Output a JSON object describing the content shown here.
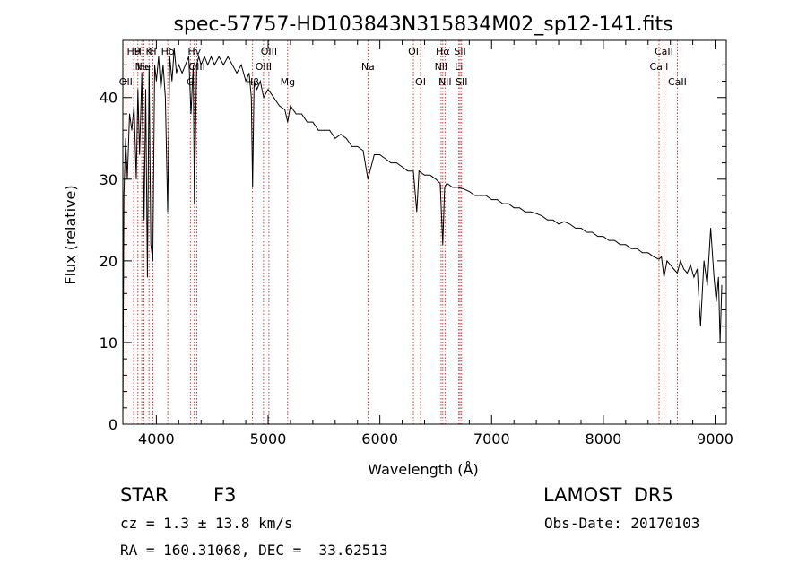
{
  "chart_data": {
    "type": "line",
    "title": "spec-57757-HD103843N315834M02_sp12-141.fits",
    "xlabel": "Wavelength (Å)",
    "ylabel": "Flux (relative)",
    "xlim": [
      3700,
      9100
    ],
    "ylim": [
      0,
      47
    ],
    "x_ticks": [
      4000,
      5000,
      6000,
      7000,
      8000,
      9000
    ],
    "y_ticks": [
      0,
      10,
      20,
      30,
      40
    ],
    "grid": false,
    "line_color": "#000000",
    "marker_color": "#cc0000",
    "series": [
      {
        "x": [
          3700,
          3710,
          3725,
          3740,
          3760,
          3780,
          3800,
          3820,
          3835,
          3850,
          3870,
          3890,
          3905,
          3920,
          3935,
          3950,
          3968,
          3985,
          4000,
          4020,
          4040,
          4060,
          4080,
          4101,
          4120,
          4140,
          4160,
          4180,
          4200,
          4230,
          4260,
          4290,
          4310,
          4330,
          4340,
          4360,
          4380,
          4400,
          4430,
          4460,
          4490,
          4520,
          4560,
          4600,
          4640,
          4680,
          4720,
          4760,
          4800,
          4830,
          4850,
          4861,
          4875,
          4900,
          4930,
          4960,
          5000,
          5050,
          5100,
          5150,
          5175,
          5200,
          5250,
          5300,
          5350,
          5400,
          5450,
          5500,
          5550,
          5600,
          5650,
          5700,
          5750,
          5800,
          5850,
          5893,
          5950,
          6000,
          6050,
          6100,
          6150,
          6200,
          6250,
          6300,
          6330,
          6350,
          6400,
          6450,
          6500,
          6540,
          6563,
          6580,
          6600,
          6650,
          6700,
          6750,
          6800,
          6850,
          6900,
          6950,
          7000,
          7050,
          7100,
          7150,
          7200,
          7250,
          7300,
          7350,
          7400,
          7450,
          7500,
          7550,
          7600,
          7650,
          7700,
          7750,
          7800,
          7850,
          7900,
          7950,
          8000,
          8050,
          8100,
          8150,
          8200,
          8250,
          8300,
          8350,
          8400,
          8450,
          8498,
          8520,
          8542,
          8570,
          8600,
          8630,
          8662,
          8690,
          8720,
          8750,
          8780,
          8810,
          8840,
          8870,
          8900,
          8930,
          8960,
          8990,
          9010,
          9030,
          9045,
          9060
        ],
        "y": [
          0.5,
          28,
          35,
          30,
          38,
          36,
          39,
          30,
          41,
          33,
          43,
          25,
          41,
          18,
          44,
          22,
          20,
          44,
          42,
          45,
          41,
          44,
          40,
          26,
          45,
          42,
          46,
          43,
          44,
          43,
          44,
          45,
          38,
          44,
          27,
          44,
          45,
          44,
          45,
          44,
          45,
          44,
          45,
          44,
          45,
          44,
          43,
          44,
          42,
          43,
          40,
          29,
          42,
          41,
          42,
          40,
          41,
          40,
          39,
          38.5,
          37,
          39,
          38,
          38,
          37,
          37,
          36,
          36,
          36,
          35,
          35.5,
          35,
          34,
          34,
          33.5,
          30,
          33,
          33,
          32.5,
          32,
          32,
          31.5,
          31,
          31,
          26,
          31,
          30.5,
          30.5,
          30,
          29.5,
          22,
          29,
          29.5,
          29,
          29,
          28.8,
          28.5,
          28,
          28,
          28,
          27.5,
          27.5,
          27,
          27,
          26.5,
          26.5,
          26,
          26,
          25.8,
          25.5,
          25,
          25,
          24.5,
          24.8,
          24.5,
          24,
          24,
          23.5,
          23.5,
          23,
          23,
          22.5,
          22.5,
          22,
          22,
          21.5,
          21.5,
          21,
          21,
          20.5,
          20.2,
          20.5,
          18,
          20,
          19.5,
          19,
          18.5,
          20,
          19,
          18.5,
          19.5,
          18,
          19,
          12,
          20,
          17,
          24,
          18,
          15,
          18,
          10,
          17
        ]
      }
    ],
    "lines": [
      {
        "x": 3727,
        "labels": [
          "OII"
        ],
        "row": 3
      },
      {
        "x": 3797,
        "labels": [
          "H9"
        ],
        "row": 1
      },
      {
        "x": 3835,
        "labels": [
          "H"
        ],
        "row": 1
      },
      {
        "x": 3869,
        "labels": [
          "Ne"
        ],
        "row": 2
      },
      {
        "x": 3889,
        "labels": [
          "He"
        ],
        "row": 2
      },
      {
        "x": 3934,
        "labels": [
          "K"
        ],
        "row": 1
      },
      {
        "x": 3969,
        "labels": [
          "H"
        ],
        "row": 1
      },
      {
        "x": 4102,
        "labels": [
          "Hδ"
        ],
        "row": 1
      },
      {
        "x": 4304,
        "labels": [
          "G"
        ],
        "row": 3
      },
      {
        "x": 4340,
        "labels": [
          "Hγ"
        ],
        "row": 1
      },
      {
        "x": 4363,
        "labels": [
          "OIII"
        ],
        "row": 2
      },
      {
        "x": 4861,
        "labels": [
          "Hβ"
        ],
        "row": 3
      },
      {
        "x": 4959,
        "labels": [
          "OIII"
        ],
        "row": 2
      },
      {
        "x": 5007,
        "labels": [
          "OIII"
        ],
        "row": 1
      },
      {
        "x": 5175,
        "labels": [
          "Mg"
        ],
        "row": 3
      },
      {
        "x": 5893,
        "labels": [
          "Na"
        ],
        "row": 2
      },
      {
        "x": 6300,
        "labels": [
          "OI"
        ],
        "row": 1
      },
      {
        "x": 6364,
        "labels": [
          "OI"
        ],
        "row": 3
      },
      {
        "x": 6548,
        "labels": [
          "NII"
        ],
        "row": 2
      },
      {
        "x": 6563,
        "labels": [
          "Hα"
        ],
        "row": 1
      },
      {
        "x": 6583,
        "labels": [
          "NII"
        ],
        "row": 3
      },
      {
        "x": 6707,
        "labels": [
          "Li"
        ],
        "row": 2
      },
      {
        "x": 6717,
        "labels": [
          "SII"
        ],
        "row": 1
      },
      {
        "x": 6731,
        "labels": [
          "SII"
        ],
        "row": 3
      },
      {
        "x": 8498,
        "labels": [
          "CaII"
        ],
        "row": 2
      },
      {
        "x": 8542,
        "labels": [
          "CaII"
        ],
        "row": 1
      },
      {
        "x": 8662,
        "labels": [
          "CaII"
        ],
        "row": 3
      }
    ]
  },
  "info": {
    "class_label": "STAR",
    "subclass": "F3",
    "survey": "LAMOST  DR5",
    "redshift": "cz = 1.3 ± 13.8 km/s",
    "obs_date": "Obs-Date: 20170103",
    "coords": "RA = 160.31068, DEC =  33.62513"
  }
}
